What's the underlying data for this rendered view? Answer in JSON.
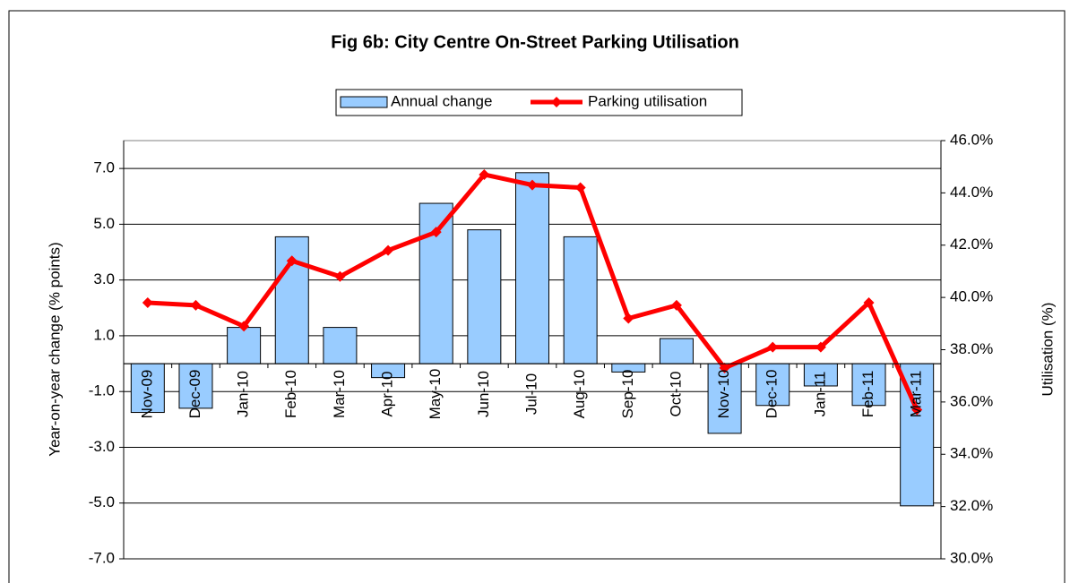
{
  "chart_data": {
    "type": "combo",
    "title": "Fig 6b: City Centre On-Street Parking Utilisation",
    "y_label": "Year-on-year change (% points)",
    "y2_label": "Utilisation (%)",
    "categories": [
      "Nov-09",
      "Dec-09",
      "Jan-10",
      "Feb-10",
      "Mar-10",
      "Apr-10",
      "May-10",
      "Jun-10",
      "Jul-10",
      "Aug-10",
      "Sep-10",
      "Oct-10",
      "Nov-10",
      "Dec-10",
      "Jan-11",
      "Feb-11",
      "Mar-11"
    ],
    "series": [
      {
        "name": "Annual change",
        "type": "bar",
        "color": "#99ccff",
        "values": [
          -1.75,
          -1.6,
          1.3,
          4.55,
          1.3,
          -0.5,
          5.75,
          4.8,
          6.85,
          4.55,
          -0.3,
          0.9,
          -2.5,
          -1.5,
          -0.8,
          -1.5,
          -5.1
        ]
      },
      {
        "name": "Parking utilisation",
        "type": "line",
        "axis": "y2",
        "color": "#ff0000",
        "values": [
          39.8,
          39.7,
          38.9,
          41.4,
          40.8,
          41.8,
          42.5,
          44.7,
          44.3,
          44.2,
          39.2,
          39.7,
          37.3,
          38.1,
          38.1,
          39.8,
          35.7
        ]
      }
    ],
    "ylim": [
      -7,
      8
    ],
    "yticks": [
      {
        "value": -7,
        "label": "-7.0"
      },
      {
        "value": -5,
        "label": "-5.0"
      },
      {
        "value": -3,
        "label": "-3.0"
      },
      {
        "value": -1,
        "label": "-1.0"
      },
      {
        "value": 1,
        "label": "1.0"
      },
      {
        "value": 3,
        "label": "3.0"
      },
      {
        "value": 5,
        "label": "5.0"
      },
      {
        "value": 7,
        "label": "7.0"
      }
    ],
    "y2lim": [
      30,
      46
    ],
    "y2ticks": [
      {
        "value": 30,
        "label": "30.0%"
      },
      {
        "value": 32,
        "label": "32.0%"
      },
      {
        "value": 34,
        "label": "34.0%"
      },
      {
        "value": 36,
        "label": "36.0%"
      },
      {
        "value": 38,
        "label": "38.0%"
      },
      {
        "value": 40,
        "label": "40.0%"
      },
      {
        "value": 42,
        "label": "42.0%"
      },
      {
        "value": 44,
        "label": "44.0%"
      },
      {
        "value": 46,
        "label": "46.0%"
      }
    ],
    "grid": true,
    "legend": "top"
  }
}
